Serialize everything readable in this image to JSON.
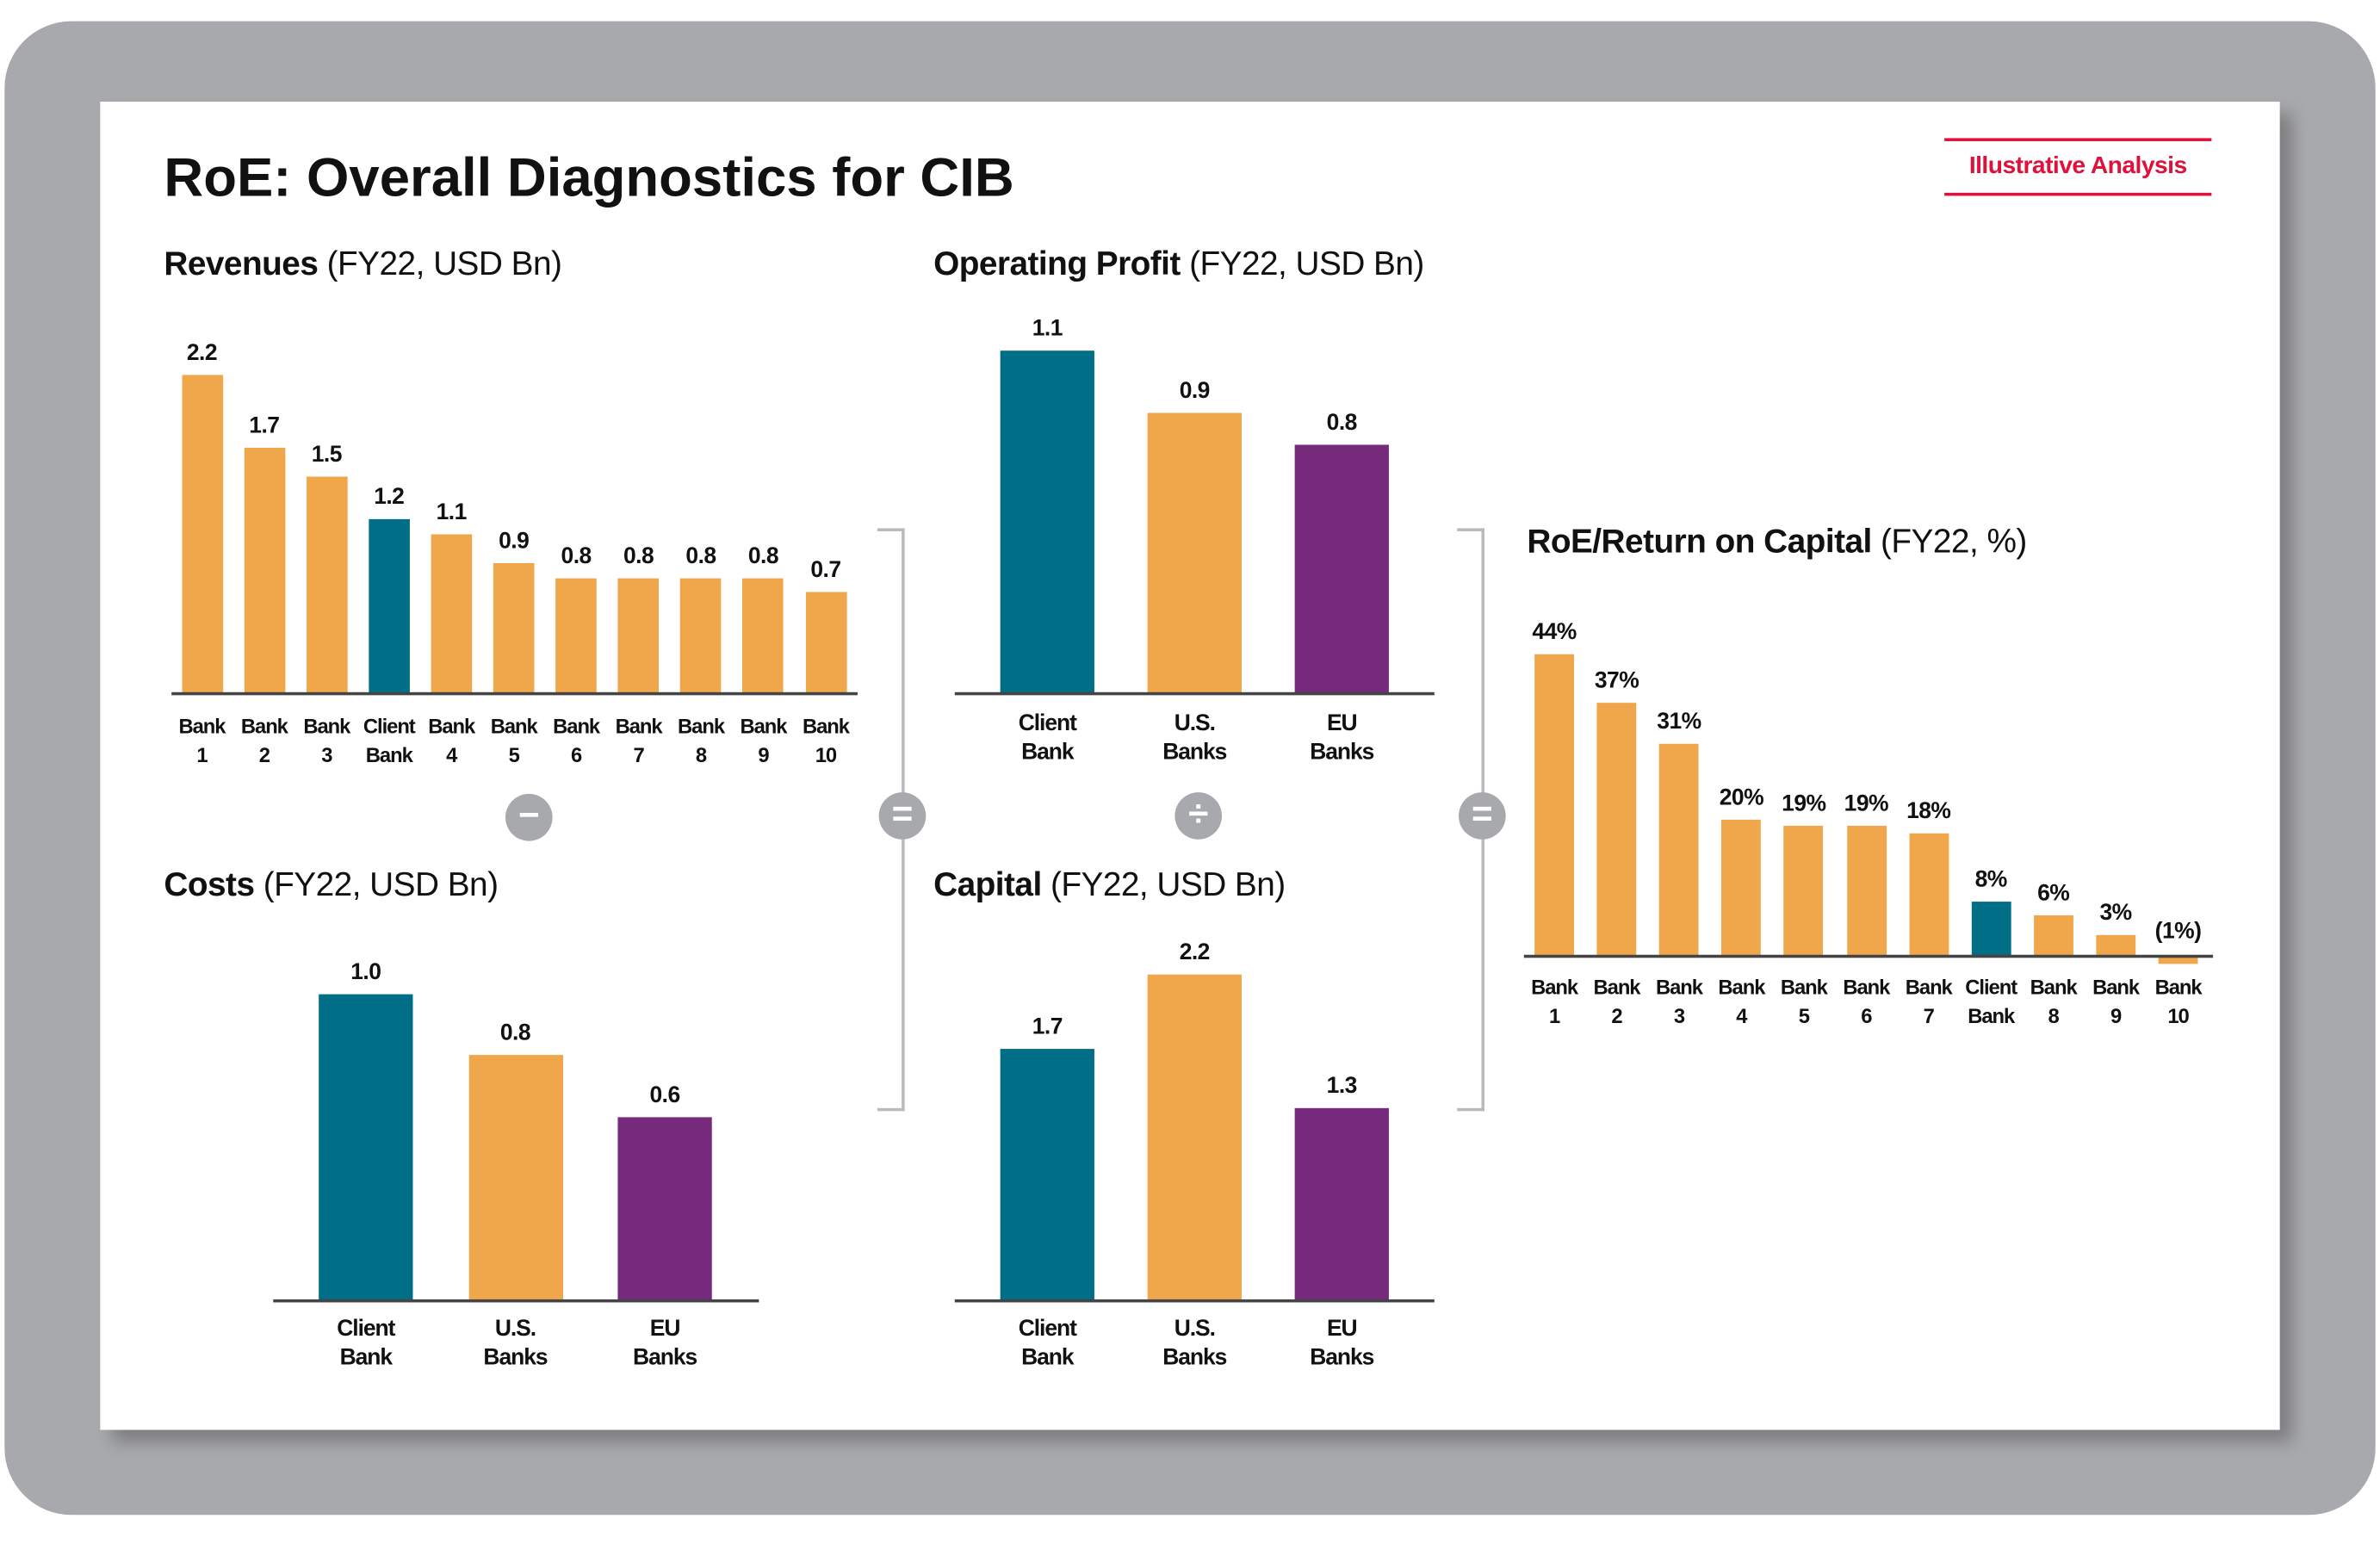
{
  "title": "RoE: Overall Diagnostics for CIB",
  "badge": "Illustrative Analysis",
  "colors": {
    "orange": "#f0a64a",
    "teal": "#006e87",
    "purple": "#752a7c",
    "operator": "#a8a9ac",
    "badge": "#e0103a"
  },
  "operators": {
    "minus": "−",
    "equals_1": "=",
    "divide": "÷",
    "equals_2": "="
  },
  "chart_data": [
    {
      "id": "revenues",
      "type": "bar",
      "title": "Revenues",
      "subtitle": "(FY22, USD Bn)",
      "categories": [
        "Bank 1",
        "Bank 2",
        "Bank 3",
        "Client Bank",
        "Bank 4",
        "Bank 5",
        "Bank 6",
        "Bank 7",
        "Bank 8",
        "Bank 9",
        "Bank 10"
      ],
      "values": [
        2.2,
        1.7,
        1.5,
        1.2,
        1.1,
        0.9,
        0.8,
        0.8,
        0.8,
        0.8,
        0.7
      ],
      "labels": [
        "2.2",
        "1.7",
        "1.5",
        "1.2",
        "1.1",
        "0.9",
        "0.8",
        "0.8",
        "0.8",
        "0.8",
        "0.7"
      ],
      "bar_colors": [
        "orange",
        "orange",
        "orange",
        "teal",
        "orange",
        "orange",
        "orange",
        "orange",
        "orange",
        "orange",
        "orange"
      ]
    },
    {
      "id": "costs",
      "type": "bar",
      "title": "Costs",
      "subtitle": "(FY22, USD Bn)",
      "categories": [
        "Client Bank",
        "U.S. Banks",
        "EU Banks"
      ],
      "values": [
        1.0,
        0.8,
        0.6
      ],
      "labels": [
        "1.0",
        "0.8",
        "0.6"
      ],
      "bar_colors": [
        "teal",
        "orange",
        "purple"
      ]
    },
    {
      "id": "operating_profit",
      "type": "bar",
      "title": "Operating Profit",
      "subtitle": "(FY22, USD Bn)",
      "categories": [
        "Client Bank",
        "U.S. Banks",
        "EU Banks"
      ],
      "values": [
        1.1,
        0.9,
        0.8
      ],
      "labels": [
        "1.1",
        "0.9",
        "0.8"
      ],
      "bar_colors": [
        "teal",
        "orange",
        "purple"
      ]
    },
    {
      "id": "capital",
      "type": "bar",
      "title": "Capital",
      "subtitle": "(FY22, USD Bn)",
      "categories": [
        "Client Bank",
        "U.S. Banks",
        "EU Banks"
      ],
      "values": [
        1.7,
        2.2,
        1.3
      ],
      "labels": [
        "1.7",
        "2.2",
        "1.3"
      ],
      "bar_colors": [
        "teal",
        "orange",
        "purple"
      ]
    },
    {
      "id": "roe",
      "type": "bar",
      "title": "RoE/Return on Capital",
      "subtitle": "(FY22, %)",
      "categories": [
        "Bank 1",
        "Bank 2",
        "Bank 3",
        "Bank 4",
        "Bank 5",
        "Bank 6",
        "Bank 7",
        "Client Bank",
        "Bank 8",
        "Bank 9",
        "Bank 10"
      ],
      "values": [
        44,
        37,
        31,
        20,
        19,
        19,
        18,
        8,
        6,
        3,
        -1
      ],
      "labels": [
        "44%",
        "37%",
        "31%",
        "20%",
        "19%",
        "19%",
        "18%",
        "8%",
        "6%",
        "3%",
        "(1%)"
      ],
      "bar_colors": [
        "orange",
        "orange",
        "orange",
        "orange",
        "orange",
        "orange",
        "orange",
        "teal",
        "orange",
        "orange",
        "orange"
      ]
    }
  ]
}
